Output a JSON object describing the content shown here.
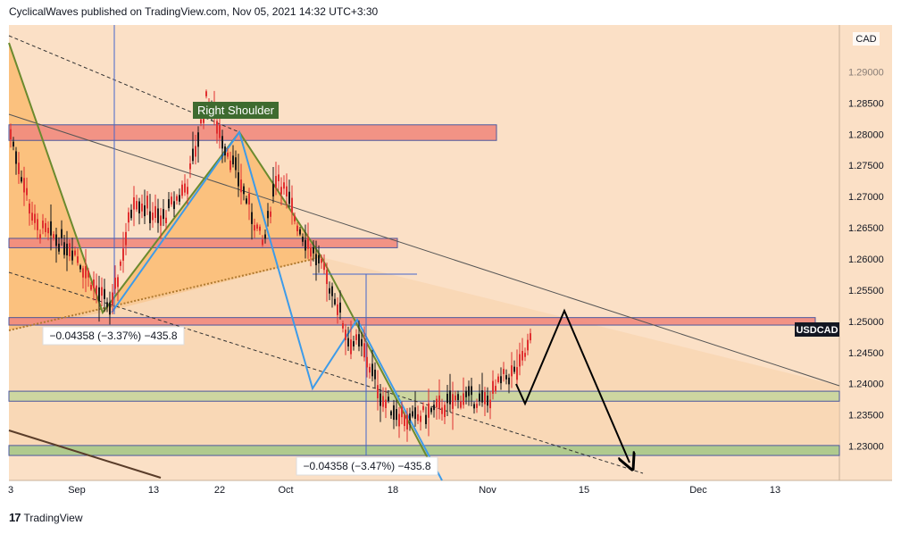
{
  "header": {
    "publisher": "CyclicalWaves published on TradingView.com, Nov 05, 2021 14:32 UTC+3:30"
  },
  "footer": {
    "logo_glyph": "17",
    "brand": "TradingView"
  },
  "chart_data": {
    "type": "candlestick",
    "symbol": "USDCAD",
    "currency": "CAD",
    "ylim": [
      1.2245,
      1.2975
    ],
    "y_ticks": [
      "1.29000",
      "1.28500",
      "1.28000",
      "1.27500",
      "1.27000",
      "1.26500",
      "1.26000",
      "1.25500",
      "1.25000",
      "1.24500",
      "1.24000",
      "1.23500",
      "1.23000"
    ],
    "x_ticks": [
      "3",
      "Sep",
      "13",
      "22",
      "Oct",
      "18",
      "Nov",
      "15",
      "Dec",
      "13"
    ],
    "annotations": {
      "right_shoulder": "Right Shoulder",
      "measure_left": "−0.04358 (−3.37%) −435.8",
      "measure_right": "−0.04358 (−3.47%) −435.8"
    },
    "zones": [
      {
        "name": "resistance-1.2800",
        "top": 1.2815,
        "bottom": 1.279,
        "color": "#f28b7f"
      },
      {
        "name": "resistance-1.2625",
        "top": 1.2633,
        "bottom": 1.2618,
        "color": "#f28b7f"
      },
      {
        "name": "resistance-1.2500",
        "top": 1.2506,
        "bottom": 1.2494,
        "color": "#f28b7f"
      },
      {
        "name": "support-1.2380",
        "top": 1.2388,
        "bottom": 1.2372,
        "color": "#c9d69e"
      },
      {
        "name": "support-1.2295",
        "top": 1.2301,
        "bottom": 1.2285,
        "color": "#a9c98a"
      }
    ],
    "colors": {
      "background": "#fbe0c6",
      "candle_up": "#1a1a1a",
      "candle_down": "#e03030",
      "wave": "#3d9be9",
      "forecast": "#000000",
      "label_bg": "#3e6b2f"
    }
  }
}
